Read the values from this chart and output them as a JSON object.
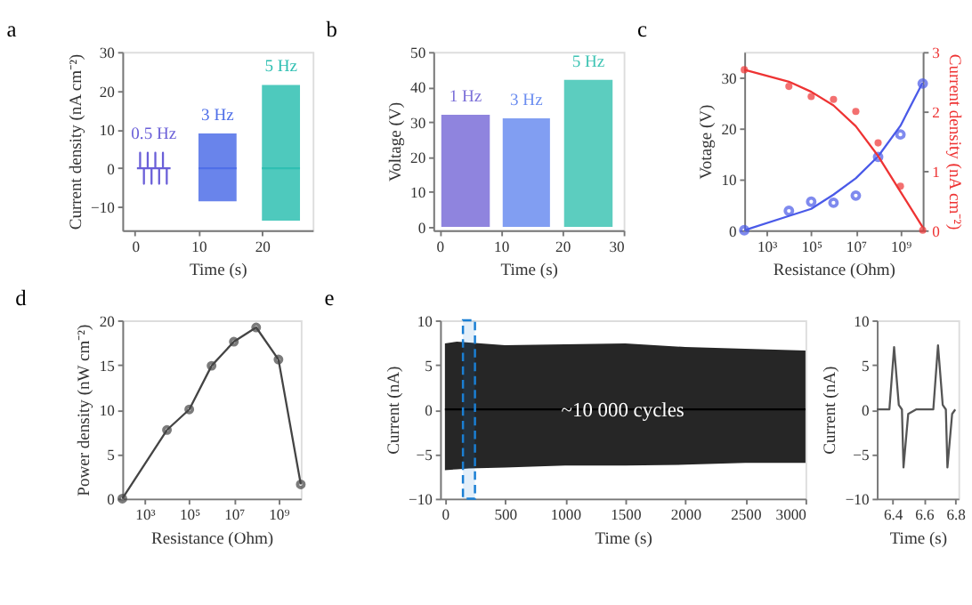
{
  "chart_data": [
    {
      "type": "line",
      "title": "a",
      "xlabel": "Time (s)",
      "ylabel": "Current density (nA cm⁻²)",
      "xlim": [
        -2,
        28
      ],
      "xticks": [
        0,
        10,
        20
      ],
      "ylim": [
        -16,
        30
      ],
      "yticks": [
        -10,
        0,
        10,
        20,
        30
      ],
      "grid": false,
      "legend": false,
      "series": [
        {
          "name": "0.5 Hz",
          "color": "#6a5fd8",
          "x": [
            0.3,
            0.8,
            0.8,
            0.8,
            1.4,
            1.4,
            1.4,
            2.0,
            2.0,
            2.0,
            2.6,
            2.6,
            2.6,
            3.2,
            3.2,
            3.2,
            3.8,
            3.8,
            3.8,
            4.4,
            4.4,
            4.4,
            5.0,
            5.0,
            5.0,
            5.6
          ],
          "values": [
            0,
            0,
            4,
            0,
            0,
            -4,
            0,
            0,
            4,
            0,
            0,
            -4,
            0,
            0,
            4,
            0,
            0,
            -4,
            0,
            0,
            4,
            0,
            0,
            -4,
            0,
            0
          ]
        },
        {
          "name": "3 Hz",
          "color": "#4f6fe8",
          "x": [
            10,
            16
          ],
          "values": [
            0,
            0
          ],
          "lower": [
            -8.5,
            -8.5
          ],
          "upper": [
            9,
            9
          ]
        },
        {
          "name": "5 Hz",
          "color": "#2fbfb2",
          "x": [
            20,
            26
          ],
          "values": [
            0,
            0
          ],
          "lower": [
            -13.5,
            -13.5
          ],
          "upper": [
            21.5,
            21.5
          ]
        }
      ]
    },
    {
      "type": "area",
      "title": "b",
      "xlabel": "Time (s)",
      "ylabel": "Voltage (V)",
      "xlim": [
        -1,
        30
      ],
      "xticks": [
        0,
        10,
        20,
        30
      ],
      "ylim": [
        -1,
        50
      ],
      "yticks": [
        0,
        10,
        20,
        30,
        40,
        50
      ],
      "grid": false,
      "legend": false,
      "series": [
        {
          "name": "1 Hz",
          "color": "#7b6fd8",
          "x": [
            0.3,
            8.2
          ],
          "values": [
            32,
            32
          ]
        },
        {
          "name": "3 Hz",
          "color": "#6b8df0",
          "x": [
            10.3,
            18
          ],
          "values": [
            31,
            31
          ]
        },
        {
          "name": "5 Hz",
          "color": "#3fc4b4",
          "x": [
            20.3,
            28.2
          ],
          "values": [
            42,
            42
          ]
        }
      ]
    },
    {
      "type": "scatter",
      "title": "c",
      "xlabel": "Resistance (Ohm)",
      "ylabel": "Votage (V)",
      "y2label": "Current density (nA cm⁻²)",
      "log": "x",
      "xlim": [
        100,
        10000000000
      ],
      "xticks": [
        {
          "value": 1000,
          "label": "10³"
        },
        {
          "value": 100000,
          "label": "10⁵"
        },
        {
          "value": 10000000,
          "label": "10⁷"
        },
        {
          "value": 1000000000,
          "label": "10⁹"
        }
      ],
      "ylim": [
        0,
        35
      ],
      "yticks": [
        0,
        10,
        20,
        30
      ],
      "y2lim": [
        0,
        3
      ],
      "y2ticks": [
        0,
        1,
        2,
        3
      ],
      "grid": false,
      "legend": false,
      "x": [
        100,
        10000,
        100000,
        1000000,
        10000000,
        100000000,
        1000000000,
        10000000000
      ],
      "series": [
        {
          "type": "scatter",
          "marker": "circle",
          "color": "#4a5ae8",
          "values": [
            0,
            3.8,
            5.6,
            5.4,
            6.8,
            14.4,
            18.8,
            28.8
          ]
        },
        {
          "type": "line",
          "marker": "none",
          "color": "#4a5ae8",
          "values": [
            0,
            2.8,
            4.2,
            7,
            10.2,
            14.5,
            20.5,
            29
          ]
        },
        {
          "type": "scatter",
          "marker": "circle",
          "axis": "y2",
          "color": "#ee3333",
          "values": [
            2.7,
            2.42,
            2.25,
            2.2,
            2.0,
            1.47,
            0.74,
            0
          ]
        },
        {
          "type": "line",
          "marker": "none",
          "axis": "y2",
          "color": "#ee3333",
          "values": [
            2.7,
            2.5,
            2.33,
            2.1,
            1.75,
            1.25,
            0.65,
            0.05
          ]
        }
      ]
    },
    {
      "type": "line",
      "title": "d",
      "xlabel": "Resistance (Ohm)",
      "ylabel": "Power density (nW cm⁻²)",
      "log": "x",
      "xlim": [
        100,
        10000000000
      ],
      "xticks": [
        {
          "value": 1000,
          "label": "10³"
        },
        {
          "value": 100000,
          "label": "10⁵"
        },
        {
          "value": 10000000,
          "label": "10⁷"
        },
        {
          "value": 1000000000,
          "label": "10⁹"
        }
      ],
      "ylim": [
        0,
        20
      ],
      "yticks": [
        0,
        5,
        10,
        15,
        20
      ],
      "grid": false,
      "legend": false,
      "marker": "circle",
      "x": [
        100,
        10000,
        100000,
        1000000,
        10000000,
        100000000,
        1000000000,
        10000000000
      ],
      "series": [
        {
          "color": "#444444",
          "values": [
            0,
            7.7,
            10,
            14.9,
            17.6,
            19.2,
            15.6,
            1.6
          ]
        }
      ]
    },
    {
      "type": "line",
      "title": "e",
      "xlabel": "Time (s)",
      "ylabel": "Current (nA)",
      "xlim": [
        -40,
        3000
      ],
      "xticks": [
        0,
        500,
        1000,
        1500,
        2000,
        2500,
        3000
      ],
      "ylim": [
        -10,
        10
      ],
      "yticks": [
        -10,
        -5,
        0,
        5,
        10
      ],
      "grid": false,
      "legend": false,
      "annotations": [
        "~10 000 cycles"
      ],
      "bands": [
        {
          "axis": "x",
          "from": 150,
          "to": 250,
          "color": "#1a7fd4"
        }
      ],
      "series": [
        {
          "color": "#000000",
          "x": [
            0,
            100,
            200,
            500,
            1000,
            1500,
            2000,
            2500,
            3000
          ],
          "values": [
            0,
            0,
            0,
            0,
            0,
            0,
            0,
            0,
            0
          ],
          "lower": [
            -6.8,
            -6.7,
            -6.6,
            -6.5,
            -6.3,
            -6.3,
            -6.2,
            -6.0,
            -6.0
          ],
          "upper": [
            7.4,
            7.6,
            7.5,
            7.2,
            7.3,
            7.4,
            7.0,
            6.8,
            6.6
          ]
        }
      ]
    },
    {
      "type": "line",
      "xlabel": "Time (s)",
      "ylabel": "Current (nA)",
      "xlim": [
        6.3,
        6.82
      ],
      "xticks": [
        6.4,
        6.6,
        6.8
      ],
      "ylim": [
        -10,
        10
      ],
      "yticks": [
        -10,
        -5,
        0,
        5,
        10
      ],
      "grid": false,
      "legend": false,
      "series": [
        {
          "color": "#555555",
          "x": [
            6.3,
            6.38,
            6.41,
            6.44,
            6.46,
            6.47,
            6.5,
            6.55,
            6.66,
            6.69,
            6.72,
            6.74,
            6.75,
            6.78,
            6.8
          ],
          "values": [
            0,
            0,
            7,
            0.5,
            0,
            -6.5,
            -0.5,
            0,
            0,
            7.2,
            0.5,
            0,
            -6.5,
            -0.5,
            0
          ]
        }
      ]
    }
  ]
}
